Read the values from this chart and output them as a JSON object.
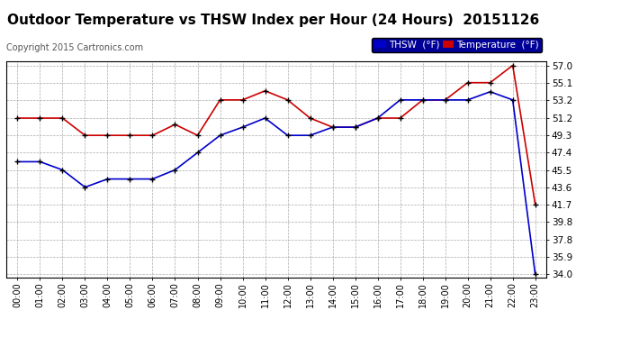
{
  "title": "Outdoor Temperature vs THSW Index per Hour (24 Hours)  20151126",
  "copyright": "Copyright 2015 Cartronics.com",
  "hours": [
    "00:00",
    "01:00",
    "02:00",
    "03:00",
    "04:00",
    "05:00",
    "06:00",
    "07:00",
    "08:00",
    "09:00",
    "10:00",
    "11:00",
    "12:00",
    "13:00",
    "14:00",
    "15:00",
    "16:00",
    "17:00",
    "18:00",
    "19:00",
    "20:00",
    "21:00",
    "22:00",
    "23:00"
  ],
  "temperature": [
    51.2,
    51.2,
    51.2,
    49.3,
    49.3,
    49.3,
    49.3,
    50.5,
    49.3,
    53.2,
    53.2,
    54.2,
    53.2,
    51.2,
    50.2,
    50.2,
    51.2,
    51.2,
    53.2,
    53.2,
    55.1,
    55.1,
    57.0,
    41.7
  ],
  "thsw": [
    46.4,
    46.4,
    45.5,
    43.6,
    44.5,
    44.5,
    44.5,
    45.5,
    47.4,
    49.3,
    50.2,
    51.2,
    49.3,
    49.3,
    50.2,
    50.2,
    51.2,
    53.2,
    53.2,
    53.2,
    53.2,
    54.1,
    53.2,
    34.0
  ],
  "ylim_min": 34.0,
  "ylim_max": 57.0,
  "yticks": [
    34.0,
    35.9,
    37.8,
    39.8,
    41.7,
    43.6,
    45.5,
    47.4,
    49.3,
    51.2,
    53.2,
    55.1,
    57.0
  ],
  "temp_color": "#cc0000",
  "thsw_color": "#0000cc",
  "marker_color": "#000000",
  "plot_bg_color": "#ffffff",
  "fig_bg_color": "#ffffff",
  "grid_color": "#aaaaaa",
  "title_fontsize": 11,
  "copyright_fontsize": 7,
  "legend_bg_color": "#000099",
  "legend_thsw_label": "THSW  (°F)",
  "legend_temp_label": "Temperature  (°F)"
}
